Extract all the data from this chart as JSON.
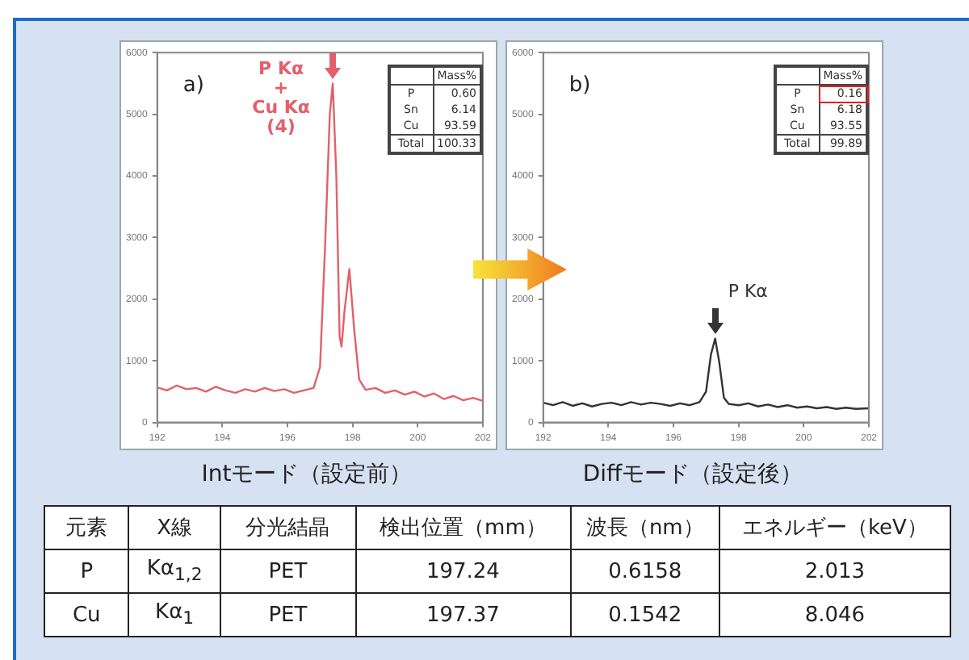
{
  "chart_data": [
    {
      "type": "line",
      "xlabel": "Intモード（設定前）",
      "xlim": [
        192,
        202
      ],
      "xticks": [
        192,
        194,
        196,
        198,
        200,
        202
      ],
      "ylim": [
        0,
        6000
      ],
      "yticks": [
        0,
        1000,
        2000,
        3000,
        4000,
        5000,
        6000
      ],
      "x": [
        192,
        192.3,
        192.6,
        192.9,
        193.2,
        193.5,
        193.8,
        194.1,
        194.4,
        194.7,
        195.0,
        195.3,
        195.6,
        195.9,
        196.2,
        196.5,
        196.8,
        197.0,
        197.15,
        197.3,
        197.39,
        197.5,
        197.6,
        197.66,
        197.75,
        197.9,
        198.05,
        198.2,
        198.4,
        198.7,
        199.0,
        199.3,
        199.6,
        199.9,
        200.2,
        200.5,
        200.8,
        201.1,
        201.4,
        201.7,
        202
      ],
      "series": [
        {
          "color": "#e2606a",
          "values": [
            570,
            520,
            600,
            540,
            560,
            500,
            580,
            520,
            480,
            540,
            500,
            560,
            510,
            540,
            480,
            520,
            560,
            900,
            2800,
            5000,
            5500,
            4000,
            1400,
            1230,
            1800,
            2490,
            1500,
            700,
            530,
            560,
            480,
            520,
            450,
            500,
            420,
            470,
            380,
            430,
            360,
            400,
            350
          ]
        }
      ],
      "annotations": [
        "a)",
        {
          "text": "P Kα\n+\nCu Kα\n(4)",
          "x": 197.39,
          "y": 5500
        },
        "Mass%",
        "P",
        "0.60",
        "Sn",
        "6.14",
        "Cu",
        "93.59",
        "Total",
        "100.33"
      ]
    },
    {
      "type": "line",
      "xlabel": "Diffモード（設定後）",
      "xlim": [
        192,
        202
      ],
      "xticks": [
        192,
        194,
        196,
        198,
        200,
        202
      ],
      "ylim": [
        0,
        6000
      ],
      "yticks": [
        0,
        1000,
        2000,
        3000,
        4000,
        5000,
        6000
      ],
      "x": [
        192,
        192.3,
        192.6,
        192.9,
        193.2,
        193.5,
        193.8,
        194.1,
        194.4,
        194.7,
        195.0,
        195.3,
        195.6,
        195.9,
        196.2,
        196.5,
        196.8,
        197.0,
        197.15,
        197.28,
        197.4,
        197.55,
        197.7,
        198.0,
        198.3,
        198.6,
        198.9,
        199.2,
        199.5,
        199.8,
        200.1,
        200.4,
        200.7,
        201.0,
        201.3,
        201.6,
        202
      ],
      "series": [
        {
          "color": "#333333",
          "values": [
            320,
            280,
            330,
            270,
            310,
            260,
            300,
            320,
            280,
            330,
            290,
            320,
            300,
            270,
            310,
            280,
            330,
            500,
            1100,
            1360,
            1000,
            400,
            300,
            280,
            310,
            260,
            290,
            250,
            280,
            240,
            260,
            230,
            250,
            220,
            240,
            220,
            230
          ]
        }
      ],
      "annotations": [
        "b)",
        {
          "text": "P Kα",
          "x": 197.28,
          "y": 1360
        },
        "Mass%",
        "P",
        "0.16",
        "Sn",
        "6.18",
        "Cu",
        "93.55",
        "Total",
        "99.89"
      ]
    },
    {
      "type": "other",
      "annotations": [
        "元素",
        "X線",
        "分光結晶",
        "検出位置（mm）",
        "波長（nm）",
        "エネルギー（keV）",
        "P",
        "Kα$_{1,2}$",
        "PET",
        "197.24",
        "0.6158",
        "2.013",
        "Cu",
        "Kα$_{1}$",
        "PET",
        "197.37",
        "0.1542",
        "8.046"
      ]
    }
  ]
}
